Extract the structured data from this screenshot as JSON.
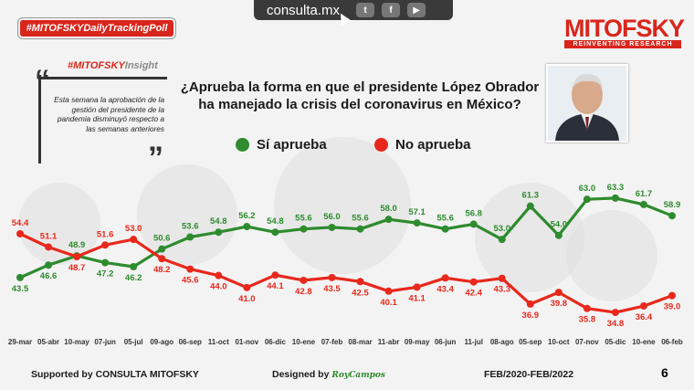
{
  "header": {
    "site": "consulta.mx",
    "social_icons": [
      "twitter-icon",
      "facebook-icon",
      "youtube-icon"
    ],
    "tag": "#MITOFSKYDailyTrackingPoll",
    "brand_name": "MITOFSKY",
    "brand_sub": "REINVENTING RESEARCH"
  },
  "insight": {
    "hashtag": "#MITOFSKY",
    "hashtag_suffix": "Insight",
    "text": "Esta semana la aprobación de la gestión del presidente de la pandemia disminuyó respecto a las semanas anteriores"
  },
  "question": "¿Aprueba la forma en que el presidente López Obrador ha manejado la crisis del coronavirus en México?",
  "colors": {
    "approve": "#2e8b2e",
    "disapprove": "#e8281c",
    "accent": "#d9261c"
  },
  "chart_data": {
    "type": "line",
    "x": [
      "29-mar",
      "05-abr",
      "10-may",
      "07-jun",
      "05-jul",
      "09-ago",
      "06-sep",
      "11-oct",
      "01-nov",
      "06-dic",
      "10-ene",
      "07-feb",
      "08-mar",
      "11-abr",
      "09-may",
      "06-jun",
      "11-jul",
      "08-ago",
      "05-sep",
      "10-oct",
      "07-nov",
      "05-dic",
      "10-ene",
      "06-feb"
    ],
    "series": [
      {
        "name": "Sí aprueba",
        "color": "#2e8b2e",
        "values": [
          43.5,
          46.6,
          48.9,
          47.2,
          46.2,
          50.6,
          53.6,
          54.8,
          56.2,
          54.8,
          55.6,
          56.0,
          55.6,
          58.0,
          57.1,
          55.6,
          56.8,
          53.0,
          61.3,
          54.0,
          63.0,
          63.3,
          61.7,
          58.9
        ]
      },
      {
        "name": "No aprueba",
        "color": "#e8281c",
        "values": [
          54.4,
          51.1,
          48.7,
          51.6,
          53.0,
          48.2,
          45.6,
          44.0,
          41.0,
          44.1,
          42.8,
          43.5,
          42.5,
          40.1,
          41.1,
          43.4,
          42.4,
          43.3,
          36.9,
          39.8,
          35.8,
          34.8,
          36.4,
          39.0
        ]
      }
    ],
    "ylim": [
      33,
      66
    ]
  },
  "footer": {
    "supported": "Supported by   CONSULTA   MITOFSKY",
    "designed": "Designed by",
    "designer": "RoyCampos",
    "period": "FEB/2020-FEB/2022",
    "page": "6"
  }
}
